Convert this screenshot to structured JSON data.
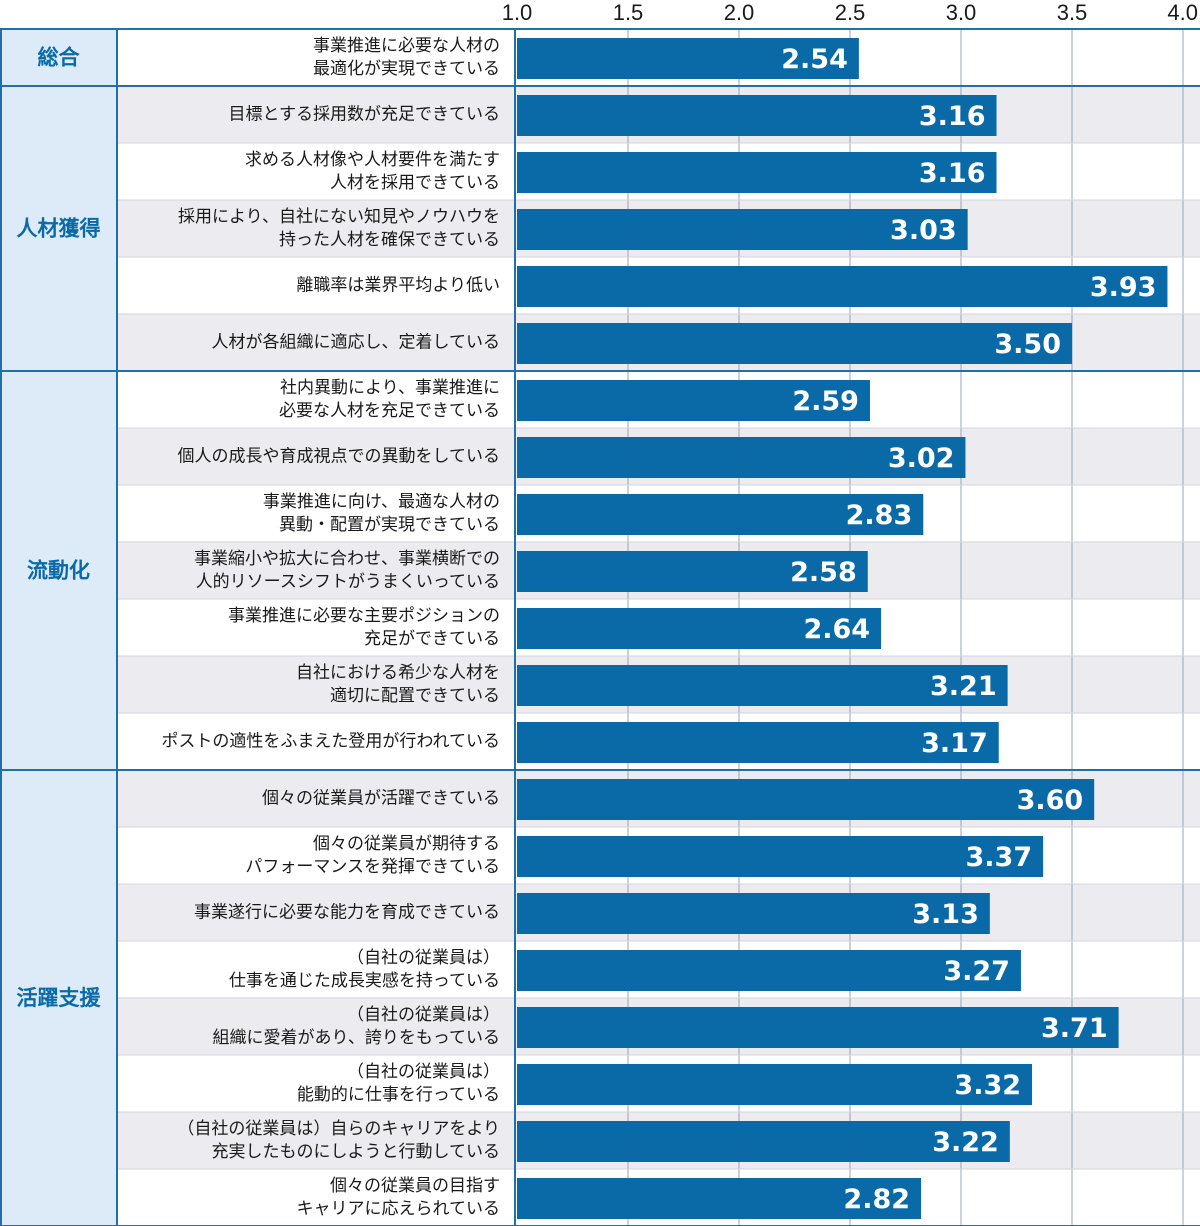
{
  "colors": {
    "bar": "#0a6aa8",
    "group_bg": "#dcebf7",
    "group_text": "#0a6aa8",
    "row_shade": "#ececf0",
    "grid": "#9aa4b0",
    "border": "#1f6fa8"
  },
  "chart_data": {
    "type": "bar",
    "orientation": "horizontal",
    "title": "",
    "xlabel": "",
    "ylabel": "",
    "xlim": [
      1.0,
      4.0
    ],
    "ticks": [
      "1.0",
      "1.5",
      "2.0",
      "2.5",
      "3.0",
      "3.5",
      "4.0"
    ],
    "tick_values": [
      1.0,
      1.5,
      2.0,
      2.5,
      3.0,
      3.5,
      4.0
    ],
    "groups": [
      {
        "name": "総合",
        "items": [
          {
            "label": [
              "事業推進に必要な人材の",
              "最適化が実現できている"
            ],
            "value": 2.54,
            "value_label": "2.54"
          }
        ]
      },
      {
        "name": "人材獲得",
        "items": [
          {
            "label": [
              "目標とする採用数が充足できている"
            ],
            "value": 3.16,
            "value_label": "3.16"
          },
          {
            "label": [
              "求める人材像や人材要件を満たす",
              "人材を採用できている"
            ],
            "value": 3.16,
            "value_label": "3.16"
          },
          {
            "label": [
              "採用により、自社にない知見やノウハウを",
              "持った人材を確保できている"
            ],
            "value": 3.03,
            "value_label": "3.03"
          },
          {
            "label": [
              "離職率は業界平均より低い"
            ],
            "value": 3.93,
            "value_label": "3.93"
          },
          {
            "label": [
              "人材が各組織に適応し、定着している"
            ],
            "value": 3.5,
            "value_label": "3.50"
          }
        ]
      },
      {
        "name": "流動化",
        "items": [
          {
            "label": [
              "社内異動により、事業推進に",
              "必要な人材を充足できている"
            ],
            "value": 2.59,
            "value_label": "2.59"
          },
          {
            "label": [
              "個人の成長や育成視点での異動をしている"
            ],
            "value": 3.02,
            "value_label": "3.02"
          },
          {
            "label": [
              "事業推進に向け、最適な人材の",
              "異動・配置が実現できている"
            ],
            "value": 2.83,
            "value_label": "2.83"
          },
          {
            "label": [
              "事業縮小や拡大に合わせ、事業横断での",
              "人的リソースシフトがうまくいっている"
            ],
            "value": 2.58,
            "value_label": "2.58"
          },
          {
            "label": [
              "事業推進に必要な主要ポジションの",
              "充足ができている"
            ],
            "value": 2.64,
            "value_label": "2.64"
          },
          {
            "label": [
              "自社における希少な人材を",
              "適切に配置できている"
            ],
            "value": 3.21,
            "value_label": "3.21"
          },
          {
            "label": [
              "ポストの適性をふまえた登用が行われている"
            ],
            "value": 3.17,
            "value_label": "3.17"
          }
        ]
      },
      {
        "name": "活躍支援",
        "items": [
          {
            "label": [
              "個々の従業員が活躍できている"
            ],
            "value": 3.6,
            "value_label": "3.60"
          },
          {
            "label": [
              "個々の従業員が期待する",
              "パフォーマンスを発揮できている"
            ],
            "value": 3.37,
            "value_label": "3.37"
          },
          {
            "label": [
              "事業遂行に必要な能力を育成できている"
            ],
            "value": 3.13,
            "value_label": "3.13"
          },
          {
            "label": [
              "（自社の従業員は）",
              "仕事を通じた成長実感を持っている"
            ],
            "value": 3.27,
            "value_label": "3.27"
          },
          {
            "label": [
              "（自社の従業員は）",
              "組織に愛着があり、誇りをもっている"
            ],
            "value": 3.71,
            "value_label": "3.71"
          },
          {
            "label": [
              "（自社の従業員は）",
              "能動的に仕事を行っている"
            ],
            "value": 3.32,
            "value_label": "3.32"
          },
          {
            "label": [
              "（自社の従業員は）自らのキャリアをより",
              "充実したものにしようと行動している"
            ],
            "value": 3.22,
            "value_label": "3.22"
          },
          {
            "label": [
              "個々の従業員の目指す",
              "キャリアに応えられている"
            ],
            "value": 2.82,
            "value_label": "2.82"
          }
        ]
      }
    ]
  }
}
